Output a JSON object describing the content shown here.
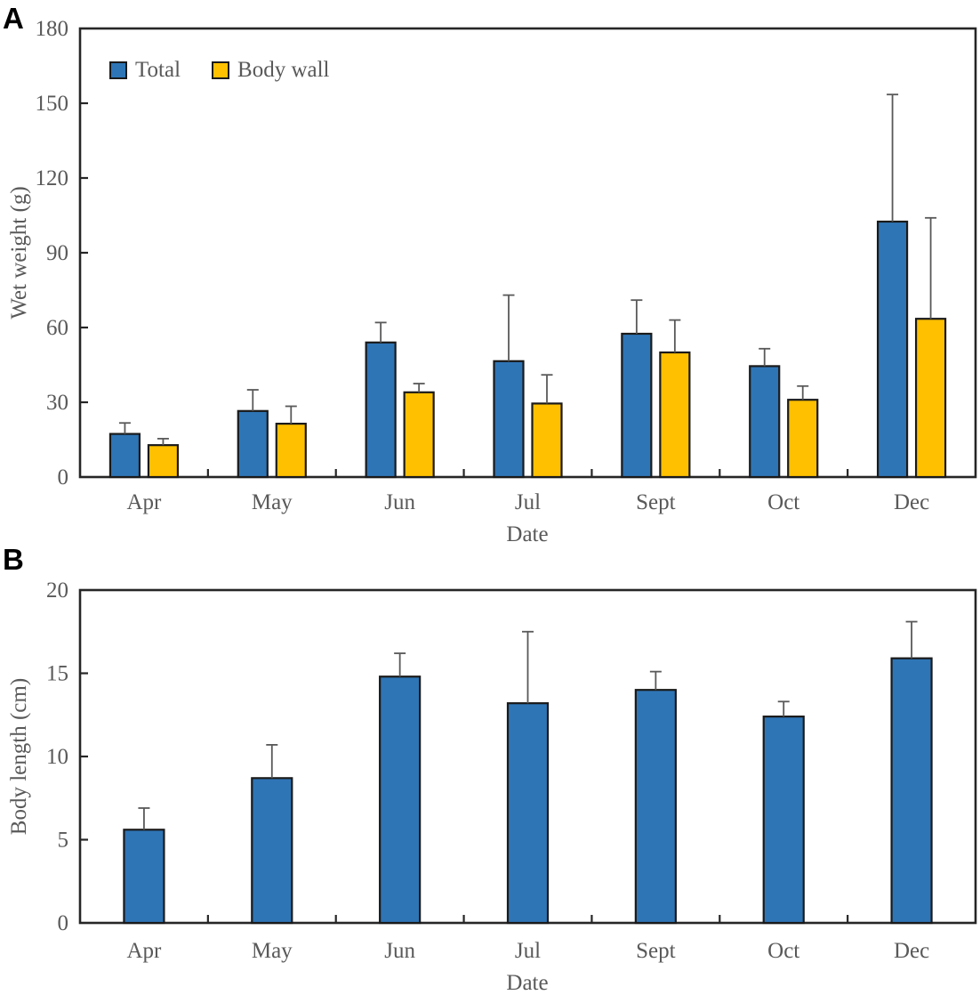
{
  "styles": {
    "axis_color": "#262626",
    "bar_outline_color": "#1A1A1A",
    "error_bar_color": "#595959",
    "text_color": "#595959",
    "total_color": "#2E75B6",
    "body_wall_color": "#FFC000"
  },
  "chart_data": [
    {
      "type": "bar",
      "panel_label": "A",
      "title": "",
      "xlabel": "Date",
      "ylabel": "Wet weight (g)",
      "categories": [
        "Apr",
        "May",
        "Jun",
        "Jul",
        "Sept",
        "Oct",
        "Dec"
      ],
      "series": [
        {
          "name": "Total",
          "color": "#2E75B6",
          "values": [
            17.3,
            26.5,
            54,
            46.5,
            57.5,
            44.5,
            102.5
          ],
          "errors_upper": [
            4.4,
            8.5,
            8,
            26.5,
            13.5,
            7,
            51
          ]
        },
        {
          "name": "Body wall",
          "color": "#FFC000",
          "values": [
            12.8,
            21.4,
            34,
            29.5,
            50,
            31,
            63.5
          ],
          "errors_upper": [
            2.6,
            7,
            3.5,
            11.5,
            13,
            5.5,
            40.5
          ]
        }
      ],
      "ylim": [
        0,
        180
      ],
      "ytick_step": 30,
      "grid": false,
      "error_bars": "upper",
      "legend_position": "top-left"
    },
    {
      "type": "bar",
      "panel_label": "B",
      "title": "",
      "xlabel": "Date",
      "ylabel": "Body length (cm)",
      "categories": [
        "Apr",
        "May",
        "Jun",
        "Jul",
        "Sept",
        "Oct",
        "Dec"
      ],
      "series": [
        {
          "color": "#2E75B6",
          "values": [
            5.6,
            8.7,
            14.8,
            13.2,
            14.0,
            12.4,
            15.9
          ],
          "errors_upper": [
            1.3,
            2.0,
            1.4,
            4.3,
            1.1,
            0.9,
            2.2
          ]
        }
      ],
      "ylim": [
        0,
        20
      ],
      "ytick_step": 5,
      "grid": false,
      "error_bars": "upper",
      "legend_position": "none"
    }
  ]
}
